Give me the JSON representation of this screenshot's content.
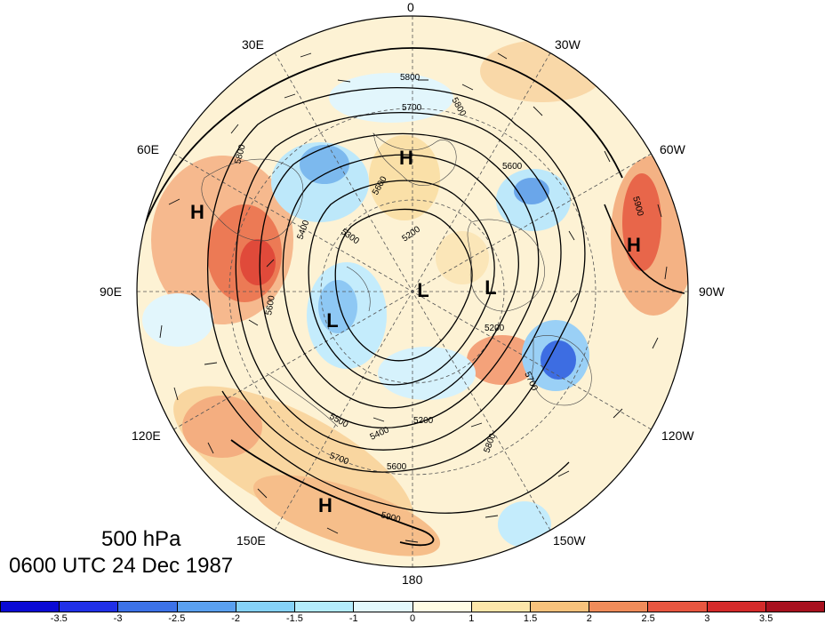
{
  "title": {
    "level": "500 hPa",
    "time": "0600 UTC 24 Dec 1987"
  },
  "longitude_labels": [
    {
      "id": "lon-0",
      "text": "0"
    },
    {
      "id": "lon-30w",
      "text": "30W"
    },
    {
      "id": "lon-60w",
      "text": "60W"
    },
    {
      "id": "lon-90w",
      "text": "90W"
    },
    {
      "id": "lon-120w",
      "text": "120W"
    },
    {
      "id": "lon-150w",
      "text": "150W"
    },
    {
      "id": "lon-180",
      "text": "180"
    },
    {
      "id": "lon-150e",
      "text": "150E"
    },
    {
      "id": "lon-120e",
      "text": "120E"
    },
    {
      "id": "lon-90e",
      "text": "90E"
    },
    {
      "id": "lon-60e",
      "text": "60E"
    },
    {
      "id": "lon-30e",
      "text": "30E"
    }
  ],
  "pressure_centers": [
    {
      "type": "H",
      "text": "H"
    },
    {
      "type": "H",
      "text": "H"
    },
    {
      "type": "H",
      "text": "H"
    },
    {
      "type": "H",
      "text": "H"
    },
    {
      "type": "L",
      "text": "L"
    },
    {
      "type": "L",
      "text": "L"
    },
    {
      "type": "L",
      "text": "L"
    }
  ],
  "contour_labels": [
    "5800",
    "5700",
    "5800",
    "5600",
    "5300",
    "5400",
    "5200",
    "5600",
    "5200",
    "5800",
    "5700",
    "5500",
    "5400",
    "5700",
    "5600",
    "5900",
    "5800",
    "5600",
    "5200",
    "5900"
  ],
  "colorbar": {
    "colors": [
      "#0a0ad4",
      "#2030e8",
      "#3c72e8",
      "#5aa0f0",
      "#86d2f8",
      "#b4ecfc",
      "#e2f8fc",
      "#fffce4",
      "#fce6aa",
      "#f8c27c",
      "#f08c5a",
      "#e85640",
      "#d42a2a",
      "#a8101e"
    ],
    "ticks": [
      "-3.5",
      "-3",
      "-2.5",
      "-2",
      "-1.5",
      "-1",
      "0",
      "1",
      "1.5",
      "2",
      "2.5",
      "3",
      "3.5"
    ]
  }
}
